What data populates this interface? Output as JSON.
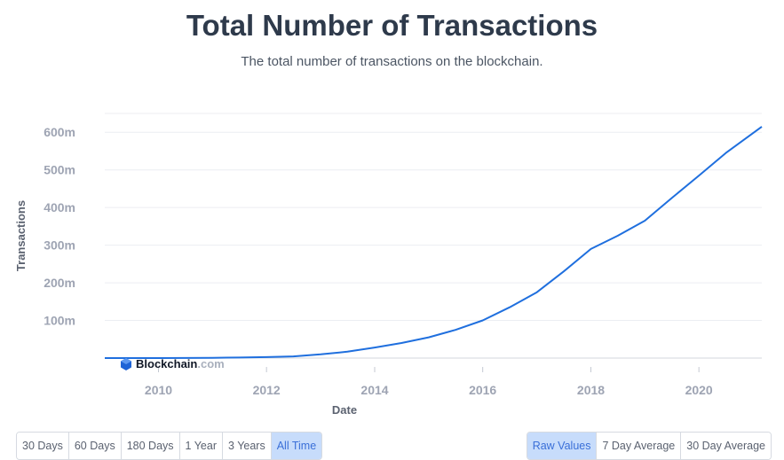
{
  "header": {
    "title": "Total Number of Transactions",
    "subtitle": "The total number of transactions on the blockchain."
  },
  "watermark": {
    "brand": "Blockchain",
    "suffix": ".com"
  },
  "range_buttons": [
    {
      "label": "30 Days",
      "active": false
    },
    {
      "label": "60 Days",
      "active": false
    },
    {
      "label": "180 Days",
      "active": false
    },
    {
      "label": "1 Year",
      "active": false
    },
    {
      "label": "3 Years",
      "active": false
    },
    {
      "label": "All Time",
      "active": true
    }
  ],
  "mode_buttons": [
    {
      "label": "Raw Values",
      "active": true
    },
    {
      "label": "7 Day Average",
      "active": false
    },
    {
      "label": "30 Day Average",
      "active": false
    }
  ],
  "colors": {
    "line": "#1f6fde",
    "grid": "#eceef2",
    "accent": "#c7dcfb"
  },
  "chart_data": {
    "type": "line",
    "xlabel": "Date",
    "ylabel": "Transactions",
    "x_ticks": [
      "2010",
      "2012",
      "2014",
      "2016",
      "2018",
      "2020"
    ],
    "y_ticks": [
      {
        "value": 100,
        "label": "100m"
      },
      {
        "value": 200,
        "label": "200m"
      },
      {
        "value": 300,
        "label": "300m"
      },
      {
        "value": 400,
        "label": "400m"
      },
      {
        "value": 500,
        "label": "500m"
      },
      {
        "value": 600,
        "label": "600m"
      }
    ],
    "xlim": [
      "2009-01-03",
      "2021-03-01"
    ],
    "ylim": [
      0,
      650
    ],
    "grid": true,
    "series": [
      {
        "values": [
          {
            "x": "2009-01-03",
            "y": 0
          },
          {
            "x": "2010-01-01",
            "y": 0.03
          },
          {
            "x": "2011-01-01",
            "y": 0.6
          },
          {
            "x": "2011-07-01",
            "y": 1.5
          },
          {
            "x": "2012-01-01",
            "y": 2.5
          },
          {
            "x": "2012-07-01",
            "y": 4.5
          },
          {
            "x": "2013-01-01",
            "y": 10
          },
          {
            "x": "2013-07-01",
            "y": 17
          },
          {
            "x": "2014-01-01",
            "y": 28
          },
          {
            "x": "2014-07-01",
            "y": 40
          },
          {
            "x": "2015-01-01",
            "y": 55
          },
          {
            "x": "2015-07-01",
            "y": 75
          },
          {
            "x": "2016-01-01",
            "y": 100
          },
          {
            "x": "2016-07-01",
            "y": 135
          },
          {
            "x": "2017-01-01",
            "y": 175
          },
          {
            "x": "2017-07-01",
            "y": 230
          },
          {
            "x": "2018-01-01",
            "y": 290
          },
          {
            "x": "2018-07-01",
            "y": 325
          },
          {
            "x": "2019-01-01",
            "y": 365
          },
          {
            "x": "2019-07-01",
            "y": 425
          },
          {
            "x": "2020-01-01",
            "y": 485
          },
          {
            "x": "2020-07-01",
            "y": 545
          },
          {
            "x": "2021-03-01",
            "y": 615
          }
        ]
      }
    ]
  }
}
